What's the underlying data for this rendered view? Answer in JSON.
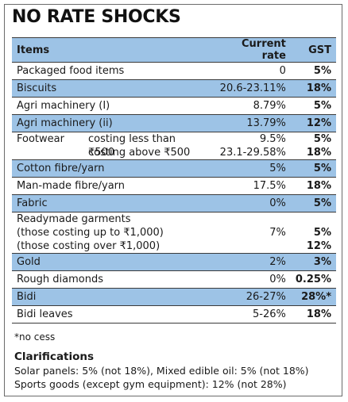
{
  "title": "NO RATE SHOCKS",
  "header": {
    "items": "Items",
    "rate": "Current rate",
    "gst": "GST"
  },
  "rows": [
    {
      "item": "Packaged food items",
      "rate": "0",
      "gst": "5%"
    },
    {
      "item": "Biscuits",
      "rate": "20.6-23.11%",
      "gst": "18%"
    },
    {
      "item": "Agri machinery (I)",
      "rate": "8.79%",
      "gst": "5%"
    },
    {
      "item": "Agri machinery (ii)",
      "rate": "13.79%",
      "gst": "12%"
    }
  ],
  "footwear": {
    "item": "Footwear",
    "sub1": "costing less than ₹500",
    "rate1": "9.5%",
    "gst1": "5%",
    "sub2": "costing above ₹500",
    "rate2": "23.1-29.58%",
    "gst2": "18%"
  },
  "rows2": [
    {
      "item": "Cotton fibre/yarn",
      "rate": "5%",
      "gst": "5%"
    },
    {
      "item": "Man-made fibre/yarn",
      "rate": "17.5%",
      "gst": "18%"
    },
    {
      "item": "Fabric",
      "rate": "0%",
      "gst": "5%"
    }
  ],
  "garments": {
    "item": "Readymade garments",
    "rate": "7%",
    "sub1": "(those costing up to ₹1,000)",
    "gst1": "5%",
    "sub2": "(those costing over ₹1,000)",
    "gst2": "12%"
  },
  "rows3": [
    {
      "item": "Gold",
      "rate": "2%",
      "gst": "3%"
    },
    {
      "item": "Rough diamonds",
      "rate": "0%",
      "gst": "0.25%"
    },
    {
      "item": "Bidi",
      "rate": "26-27%",
      "gst": "28%*"
    },
    {
      "item": "Bidi leaves",
      "rate": "5-26%",
      "gst": "18%"
    }
  ],
  "note": "*no cess",
  "clarifications": {
    "title": "Clarifications",
    "line1": "Solar panels: 5% (not 18%), Mixed edible oil: 5% (not 18%)",
    "line2": "Sports goods (except gym equipment): 12% (not 28%)"
  },
  "colors": {
    "shade": "#9dc3e6",
    "border": "#3a3a3a"
  }
}
